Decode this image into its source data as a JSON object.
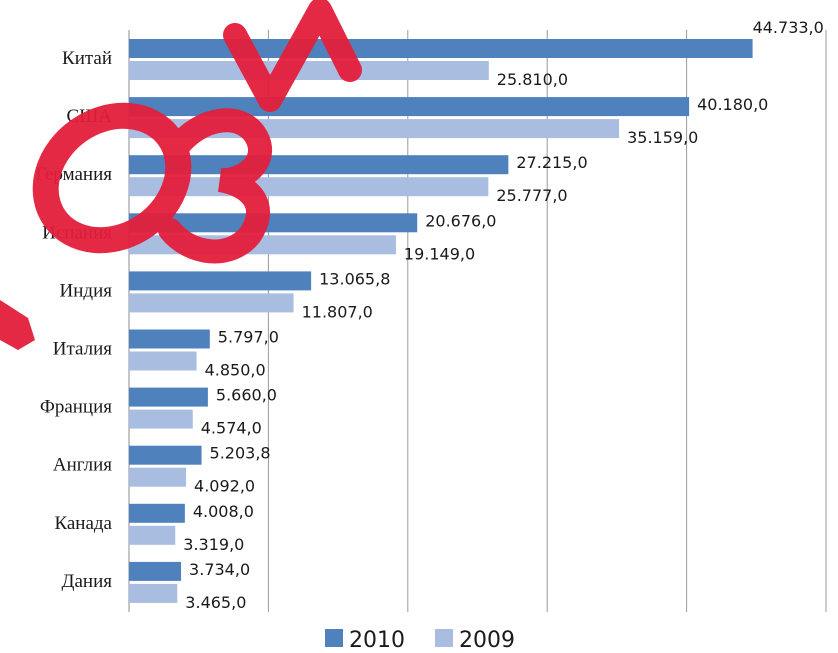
{
  "chart_data": {
    "type": "bar",
    "orientation": "horizontal",
    "categories": [
      "Китай",
      "США",
      "Германия",
      "Испания",
      "Индия",
      "Италия",
      "Франция",
      "Англия",
      "Канада",
      "Дания"
    ],
    "series": [
      {
        "name": "2010",
        "color": "#4f81bd",
        "values": [
          44733.0,
          40180.0,
          27215.0,
          20676.0,
          13065.8,
          5797.0,
          5660.0,
          5203.8,
          4008.0,
          3734.0
        ],
        "labels": [
          "44.733,0",
          "40.180,0",
          "27.215,0",
          "20.676,0",
          "13.065,8",
          "5.797,0",
          "5.660,0",
          "5.203,8",
          "4.008,0",
          "3.734,0"
        ]
      },
      {
        "name": "2009",
        "color": "#a9bde0",
        "values": [
          25810.0,
          35159.0,
          25777.0,
          19149.0,
          11807.0,
          4850.0,
          4574.0,
          4092.0,
          3319.0,
          3465.0
        ],
        "labels": [
          "25.810,0",
          "35.159,0",
          "25.777,0",
          "19.149,0",
          "11.807,0",
          "4.850,0",
          "4.574,0",
          "4.092,0",
          "3.319,0",
          "3.465,0"
        ]
      }
    ],
    "xlim": [
      0,
      50000
    ],
    "grid": true,
    "legend": "bottom",
    "title": "",
    "xlabel": "",
    "ylabel": ""
  },
  "watermark": {
    "color": "#e31e3c",
    "icon": "stamp-watermark"
  }
}
